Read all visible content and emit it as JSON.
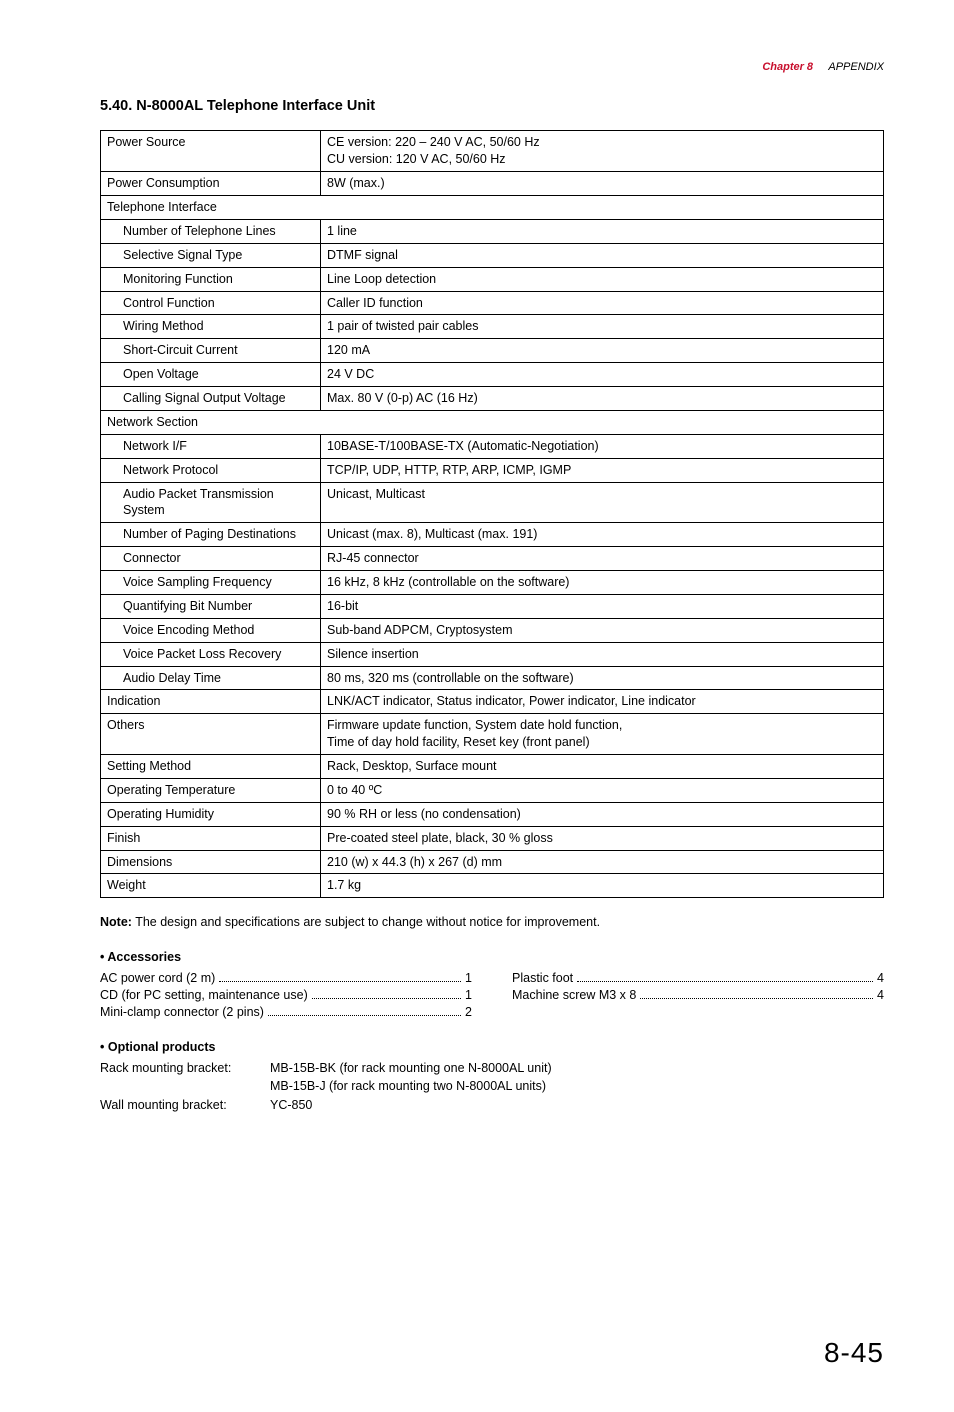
{
  "header": {
    "chapter_label": "Chapter 8",
    "chapter_title": "APPENDIX"
  },
  "section_title": "5.40. N-8000AL Telephone Interface Unit",
  "spec_rows": [
    {
      "k": "Power Source",
      "v": "CE version: 220 – 240 V AC, 50/60 Hz\nCU version: 120 V AC, 50/60 Hz",
      "indent": false,
      "span": false
    },
    {
      "k": "Power Consumption",
      "v": "8W (max.)",
      "indent": false,
      "span": false
    },
    {
      "k": "Telephone Interface",
      "v": "",
      "indent": false,
      "span": true
    },
    {
      "k": "Number of Telephone Lines",
      "v": "1 line",
      "indent": true,
      "span": false
    },
    {
      "k": "Selective Signal Type",
      "v": "DTMF signal",
      "indent": true,
      "span": false
    },
    {
      "k": "Monitoring Function",
      "v": "Line Loop detection",
      "indent": true,
      "span": false
    },
    {
      "k": "Control Function",
      "v": "Caller ID function",
      "indent": true,
      "span": false
    },
    {
      "k": "Wiring Method",
      "v": "1 pair of twisted pair cables",
      "indent": true,
      "span": false
    },
    {
      "k": "Short-Circuit Current",
      "v": "120 mA",
      "indent": true,
      "span": false
    },
    {
      "k": "Open Voltage",
      "v": "24 V DC",
      "indent": true,
      "span": false
    },
    {
      "k": "Calling Signal Output Voltage",
      "v": "Max. 80 V (0-p) AC (16 Hz)",
      "indent": true,
      "span": false
    },
    {
      "k": "Network Section",
      "v": "",
      "indent": false,
      "span": true
    },
    {
      "k": "Network I/F",
      "v": "10BASE-T/100BASE-TX (Automatic-Negotiation)",
      "indent": true,
      "span": false
    },
    {
      "k": "Network Protocol",
      "v": "TCP/IP, UDP, HTTP, RTP, ARP, ICMP, IGMP",
      "indent": true,
      "span": false
    },
    {
      "k": "Audio Packet Transmission System",
      "v": "Unicast, Multicast",
      "indent": true,
      "span": false
    },
    {
      "k": "Number of Paging Destinations",
      "v": "Unicast (max. 8), Multicast (max. 191)",
      "indent": true,
      "span": false
    },
    {
      "k": "Connector",
      "v": "RJ-45 connector",
      "indent": true,
      "span": false
    },
    {
      "k": "Voice Sampling Frequency",
      "v": "16 kHz, 8 kHz (controllable on the software)",
      "indent": true,
      "span": false
    },
    {
      "k": "Quantifying Bit Number",
      "v": "16-bit",
      "indent": true,
      "span": false
    },
    {
      "k": "Voice Encoding Method",
      "v": "Sub-band ADPCM, Cryptosystem",
      "indent": true,
      "span": false
    },
    {
      "k": "Voice Packet Loss Recovery",
      "v": "Silence insertion",
      "indent": true,
      "span": false
    },
    {
      "k": "Audio Delay Time",
      "v": "80 ms, 320 ms (controllable on the software)",
      "indent": true,
      "span": false
    },
    {
      "k": "Indication",
      "v": "LNK/ACT indicator, Status indicator, Power indicator, Line indicator",
      "indent": false,
      "span": false
    },
    {
      "k": "Others",
      "v": "Firmware update function, System date hold function,\nTime of day hold facility, Reset key (front panel)",
      "indent": false,
      "span": false
    },
    {
      "k": "Setting Method",
      "v": "Rack, Desktop, Surface mount",
      "indent": false,
      "span": false
    },
    {
      "k": "Operating Temperature",
      "v": "0 to 40 ºC",
      "indent": false,
      "span": false
    },
    {
      "k": "Operating Humidity",
      "v": "90 % RH or less (no condensation)",
      "indent": false,
      "span": false
    },
    {
      "k": "Finish",
      "v": "Pre-coated steel plate, black, 30 % gloss",
      "indent": false,
      "span": false
    },
    {
      "k": "Dimensions",
      "v": "210 (w) x 44.3 (h) x 267 (d) mm",
      "indent": false,
      "span": false
    },
    {
      "k": "Weight",
      "v": "1.7 kg",
      "indent": false,
      "span": false
    }
  ],
  "note_label": "Note:",
  "note_text": " The design and specifications are subject to change without notice for improvement.",
  "accessories": {
    "heading": "• Accessories",
    "left": [
      {
        "label": "AC power cord (2 m)",
        "val": "1"
      },
      {
        "label": "CD (for PC setting, maintenance use)",
        "val": "1"
      },
      {
        "label": "Mini-clamp connector (2 pins)",
        "val": "2"
      }
    ],
    "right": [
      {
        "label": "Plastic foot",
        "val": "4"
      },
      {
        "label": "Machine screw M3 x 8",
        "val": "4"
      }
    ]
  },
  "optional": {
    "heading": "• Optional products",
    "rows": [
      {
        "label": "Rack mounting bracket:",
        "val": "MB-15B-BK (for rack mounting one N-8000AL unit)\nMB-15B-J (for rack mounting two N-8000AL units)"
      },
      {
        "label": "Wall mounting bracket:",
        "val": "YC-850"
      }
    ]
  },
  "page_number": "8-45"
}
